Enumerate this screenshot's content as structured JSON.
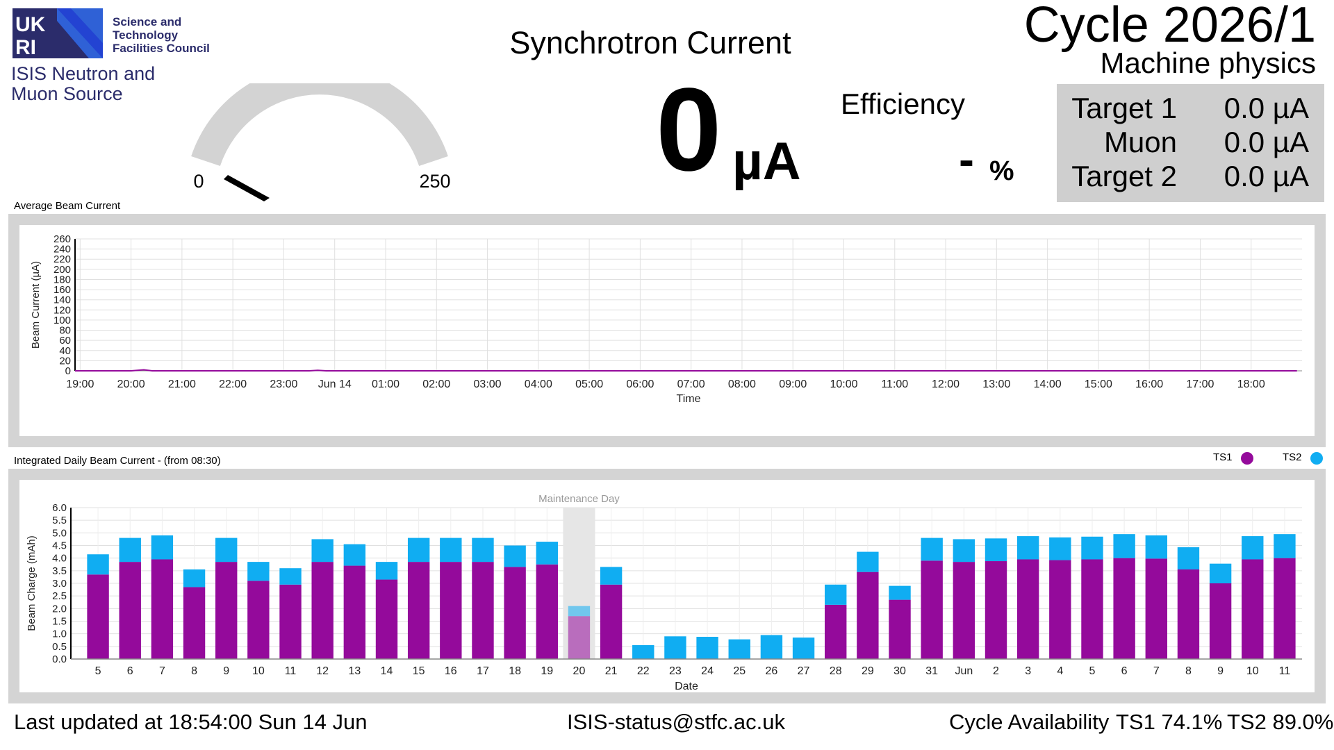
{
  "header": {
    "org_logo_text": "UKRI",
    "org_caption": [
      "Science and",
      "Technology",
      "Facilities Council"
    ],
    "facility_name": [
      "ISIS Neutron and",
      "Muon Source"
    ],
    "title": "Synchrotron Current",
    "current_value": "0",
    "current_unit": "µA",
    "efficiency_label": "Efficiency",
    "efficiency_value": "-",
    "efficiency_unit": "%",
    "cycle_title": "Cycle 2026/1",
    "cycle_mode": "Machine physics"
  },
  "gauge": {
    "min_label": "0",
    "max_label": "250",
    "value": 0,
    "min": 0,
    "max": 250
  },
  "targets": [
    {
      "name": "Target 1",
      "value": "0.0 µA"
    },
    {
      "name": "Muon",
      "value": "0.0 µA"
    },
    {
      "name": "Target 2",
      "value": "0.0 µA"
    }
  ],
  "colors": {
    "ts1": "#940a9b",
    "ts2": "#10adf2",
    "panel_bg": "#d4d4d4",
    "target_box": "#cfcfcf",
    "brand": "#2b2c6b"
  },
  "footer": {
    "last_updated": "Last updated at 18:54:00 Sun 14 Jun",
    "email": "ISIS-status@stfc.ac.uk",
    "availability_label": "Cycle Availability",
    "ts1_availability": "TS1 74.1%",
    "ts2_availability": "TS2 89.0%"
  },
  "chart_data": [
    {
      "type": "line",
      "title": "Average Beam Current",
      "xlabel": "Time",
      "ylabel": "Beam Current (µA)",
      "ylim": [
        0,
        260
      ],
      "yticks": [
        0,
        20,
        40,
        60,
        80,
        100,
        120,
        140,
        160,
        180,
        200,
        220,
        240,
        260
      ],
      "x_ticks": [
        "19:00",
        "20:00",
        "21:00",
        "22:00",
        "23:00",
        "Jun 14",
        "01:00",
        "02:00",
        "03:00",
        "04:00",
        "05:00",
        "06:00",
        "07:00",
        "08:00",
        "09:00",
        "10:00",
        "11:00",
        "12:00",
        "13:00",
        "14:00",
        "15:00",
        "16:00",
        "17:00",
        "18:00"
      ],
      "grid": true,
      "series": [
        {
          "color": "#940a9b",
          "x": [
            "18:54",
            "20:00",
            "20:15",
            "20:25",
            "23:30",
            "23:40",
            "23:50",
            "18:54"
          ],
          "values": [
            0,
            0,
            2,
            0,
            0,
            1,
            0,
            0
          ]
        }
      ]
    },
    {
      "type": "bar",
      "stacked": true,
      "title": "Integrated Daily Beam Current - (from 08:30)",
      "xlabel": "Date",
      "ylabel": "Beam Charge (mAh)",
      "ylim": [
        0,
        6.0
      ],
      "yticks": [
        "0.0",
        "0.5",
        "1.0",
        "1.5",
        "2.0",
        "2.5",
        "3.0",
        "3.5",
        "4.0",
        "4.5",
        "5.0",
        "5.5",
        "6.0"
      ],
      "legend_position": "top-right",
      "grid": true,
      "annotation": {
        "label": "Maintenance Day",
        "category": "20"
      },
      "categories": [
        "5",
        "6",
        "7",
        "8",
        "9",
        "10",
        "11",
        "12",
        "13",
        "14",
        "15",
        "16",
        "17",
        "18",
        "19",
        "20",
        "21",
        "22",
        "23",
        "24",
        "25",
        "26",
        "27",
        "28",
        "29",
        "30",
        "31",
        "Jun",
        "2",
        "3",
        "4",
        "5",
        "6",
        "7",
        "8",
        "9",
        "10",
        "11"
      ],
      "series": [
        {
          "name": "TS1",
          "color": "#940a9b",
          "values": [
            3.35,
            3.85,
            3.95,
            2.85,
            3.85,
            3.1,
            2.95,
            3.85,
            3.7,
            3.15,
            3.85,
            3.85,
            3.85,
            3.65,
            3.75,
            1.7,
            2.95,
            0,
            0,
            0,
            0,
            0,
            0,
            2.15,
            3.45,
            2.35,
            3.9,
            3.85,
            3.88,
            3.95,
            3.92,
            3.95,
            4.0,
            3.98,
            3.55,
            3.0,
            3.95,
            4.0
          ]
        },
        {
          "name": "TS2",
          "color": "#10adf2",
          "values": [
            0.8,
            0.95,
            0.95,
            0.7,
            0.95,
            0.75,
            0.65,
            0.9,
            0.85,
            0.7,
            0.95,
            0.95,
            0.95,
            0.85,
            0.9,
            0.4,
            0.7,
            0.55,
            0.9,
            0.88,
            0.78,
            0.95,
            0.85,
            0.8,
            0.8,
            0.55,
            0.9,
            0.9,
            0.9,
            0.92,
            0.9,
            0.9,
            0.95,
            0.92,
            0.88,
            0.78,
            0.92,
            0.95
          ]
        }
      ]
    }
  ]
}
